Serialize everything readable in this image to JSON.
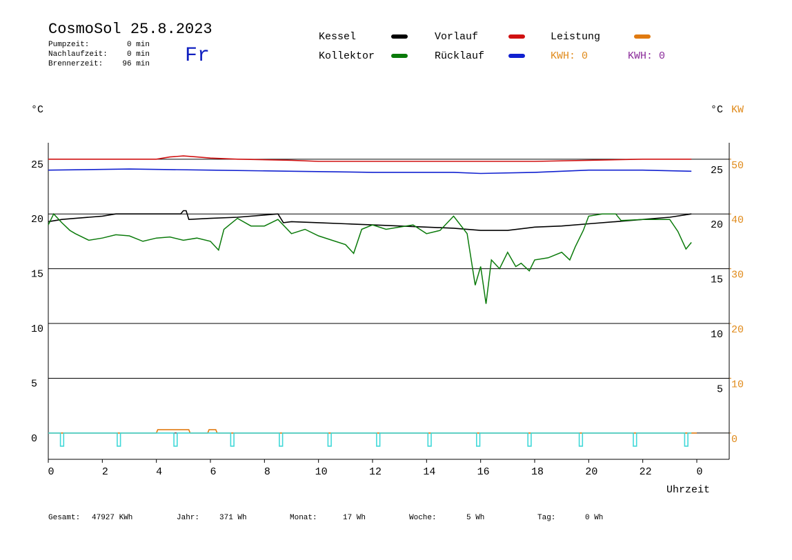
{
  "chart_data": {
    "type": "line",
    "title": "CosmoSol 25.8.2023",
    "day": "Fr",
    "info": [
      {
        "label": "Pumpzeit:",
        "value": "0 min"
      },
      {
        "label": "Nachlaufzeit:",
        "value": "0 min"
      },
      {
        "label": "Brennerzeit:",
        "value": "96 min"
      }
    ],
    "kwh_labels": [
      {
        "text": "KWH: 0",
        "color": "#e08a1a"
      },
      {
        "text": "KWH: 0",
        "color": "#8a2a9a"
      }
    ],
    "y_unit": "°C",
    "y2_unit_left": "°C",
    "y2_unit": "KW",
    "x_label": "Uhrzeit",
    "xlim": [
      0,
      25.2
    ],
    "xticks": [
      0,
      2,
      4,
      6,
      8,
      10,
      12,
      14,
      16,
      18,
      20,
      22,
      {
        "value": 24,
        "label": "0"
      }
    ],
    "ylim": [
      -2.4,
      26.5
    ],
    "yticks": [
      0,
      5,
      10,
      15,
      20,
      25
    ],
    "y2lim": [
      -4.8,
      53
    ],
    "y2ticks": [
      0,
      10,
      20,
      30,
      40,
      50
    ],
    "right_yticks": [
      5,
      10,
      15,
      20,
      25
    ],
    "grid": true,
    "series": [
      {
        "name": "Kessel",
        "color": "#000000",
        "x": [
          0,
          0.5,
          1,
          1.5,
          2,
          2.5,
          3,
          4,
          4.9,
          5.0,
          5.1,
          5.2,
          6,
          7,
          8,
          8.5,
          8.7,
          9,
          10,
          11,
          12,
          13,
          14,
          15,
          16,
          17,
          18,
          19,
          20,
          21,
          22,
          23,
          23.8
        ],
        "values": [
          19.3,
          19.5,
          19.6,
          19.7,
          19.8,
          20,
          20,
          20,
          20,
          20.3,
          20.3,
          19.5,
          19.6,
          19.7,
          19.9,
          20,
          19.2,
          19.3,
          19.2,
          19.1,
          19.0,
          18.9,
          18.8,
          18.7,
          18.5,
          18.5,
          18.8,
          18.9,
          19.1,
          19.3,
          19.5,
          19.7,
          20.0
        ]
      },
      {
        "name": "Kollektor",
        "color": "#0a7a0a",
        "x": [
          0,
          0.2,
          0.5,
          0.8,
          1,
          1.5,
          2,
          2.5,
          3,
          3.5,
          4,
          4.5,
          5,
          5.5,
          6,
          6.3,
          6.5,
          6.8,
          7,
          7.5,
          8,
          8.5,
          9,
          9.5,
          10,
          10.5,
          11,
          11.3,
          11.6,
          12,
          12.5,
          13,
          13.5,
          14,
          14.5,
          15,
          15.5,
          15.8,
          16,
          16.2,
          16.4,
          16.7,
          17,
          17.3,
          17.5,
          17.8,
          18,
          18.5,
          19,
          19.3,
          19.5,
          19.8,
          20,
          20.5,
          21,
          21.2,
          22,
          23,
          23.3,
          23.6,
          23.8
        ],
        "values": [
          19.0,
          20.0,
          19.2,
          18.5,
          18.2,
          17.6,
          17.8,
          18.1,
          18.0,
          17.5,
          17.8,
          17.9,
          17.6,
          17.8,
          17.5,
          16.7,
          18.6,
          19.2,
          19.6,
          18.9,
          18.9,
          19.5,
          18.2,
          18.6,
          18.0,
          17.6,
          17.2,
          16.4,
          18.6,
          19.0,
          18.6,
          18.8,
          19.0,
          18.2,
          18.5,
          19.8,
          18.2,
          13.5,
          15.2,
          11.8,
          15.8,
          15.0,
          16.5,
          15.2,
          15.5,
          14.8,
          15.8,
          16.0,
          16.5,
          15.8,
          17.0,
          18.5,
          19.8,
          20.0,
          20.0,
          19.4,
          19.5,
          19.5,
          18.4,
          16.8,
          17.4
        ]
      },
      {
        "name": "Vorlauf",
        "color": "#d01010",
        "x": [
          0,
          4,
          4.5,
          5,
          5.5,
          6,
          7,
          9,
          10,
          12,
          15,
          18,
          20,
          22,
          23.8
        ],
        "values": [
          25.0,
          25.0,
          25.2,
          25.3,
          25.2,
          25.1,
          25.0,
          24.9,
          24.8,
          24.8,
          24.8,
          24.8,
          24.9,
          25.0,
          25.0
        ]
      },
      {
        "name": "Rücklauf",
        "color": "#1020d0",
        "x": [
          0,
          3,
          6,
          9,
          12,
          15,
          16,
          18,
          20,
          22,
          23.8
        ],
        "values": [
          24.0,
          24.1,
          24.0,
          23.9,
          23.8,
          23.8,
          23.7,
          23.8,
          24.0,
          24.0,
          23.9
        ]
      },
      {
        "name": "Leistung",
        "color": "#e07a10",
        "axis": "y2",
        "x": [
          0,
          4.0,
          4.05,
          4.9,
          5.1,
          5.2,
          5.25,
          5.9,
          5.95,
          6.2,
          6.25,
          24
        ],
        "values": [
          0,
          0,
          0.6,
          0.6,
          0.6,
          0.6,
          0,
          0,
          0.6,
          0.6,
          0,
          0
        ]
      },
      {
        "color": "#40d8d8",
        "x": [
          0,
          0.45,
          0.45,
          0.57,
          0.57,
          2.55,
          2.55,
          2.67,
          2.67,
          4.65,
          4.65,
          4.77,
          4.77,
          6.75,
          6.75,
          6.87,
          6.87,
          8.55,
          8.55,
          8.67,
          8.67,
          10.35,
          10.35,
          10.47,
          10.47,
          12.15,
          12.15,
          12.27,
          12.27,
          14.05,
          14.05,
          14.17,
          14.17,
          15.85,
          15.85,
          15.97,
          15.97,
          17.75,
          17.75,
          17.87,
          17.87,
          19.65,
          19.65,
          19.77,
          19.77,
          21.65,
          21.65,
          21.77,
          21.77,
          23.55,
          23.55,
          23.67,
          23.67,
          23.8
        ],
        "values": [
          0,
          0,
          -1.2,
          -1.2,
          0,
          0,
          -1.2,
          -1.2,
          0,
          0,
          -1.2,
          -1.2,
          0,
          0,
          -1.2,
          -1.2,
          0,
          0,
          -1.2,
          -1.2,
          0,
          0,
          -1.2,
          -1.2,
          0,
          0,
          -1.2,
          -1.2,
          0,
          0,
          -1.2,
          -1.2,
          0,
          0,
          -1.2,
          -1.2,
          0,
          0,
          -1.2,
          -1.2,
          0,
          0,
          -1.2,
          -1.2,
          0,
          0,
          -1.2,
          -1.2,
          0,
          0,
          -1.2,
          -1.2,
          0,
          0
        ]
      }
    ],
    "totals": [
      {
        "label": "Gesamt:",
        "value": "47927 KWh"
      },
      {
        "label": "Jahr:",
        "value": "371 Wh"
      },
      {
        "label": "Monat:",
        "value": "17 Wh"
      },
      {
        "label": "Woche:",
        "value": "5 Wh"
      },
      {
        "label": "Tag:",
        "value": "0 Wh"
      }
    ]
  }
}
